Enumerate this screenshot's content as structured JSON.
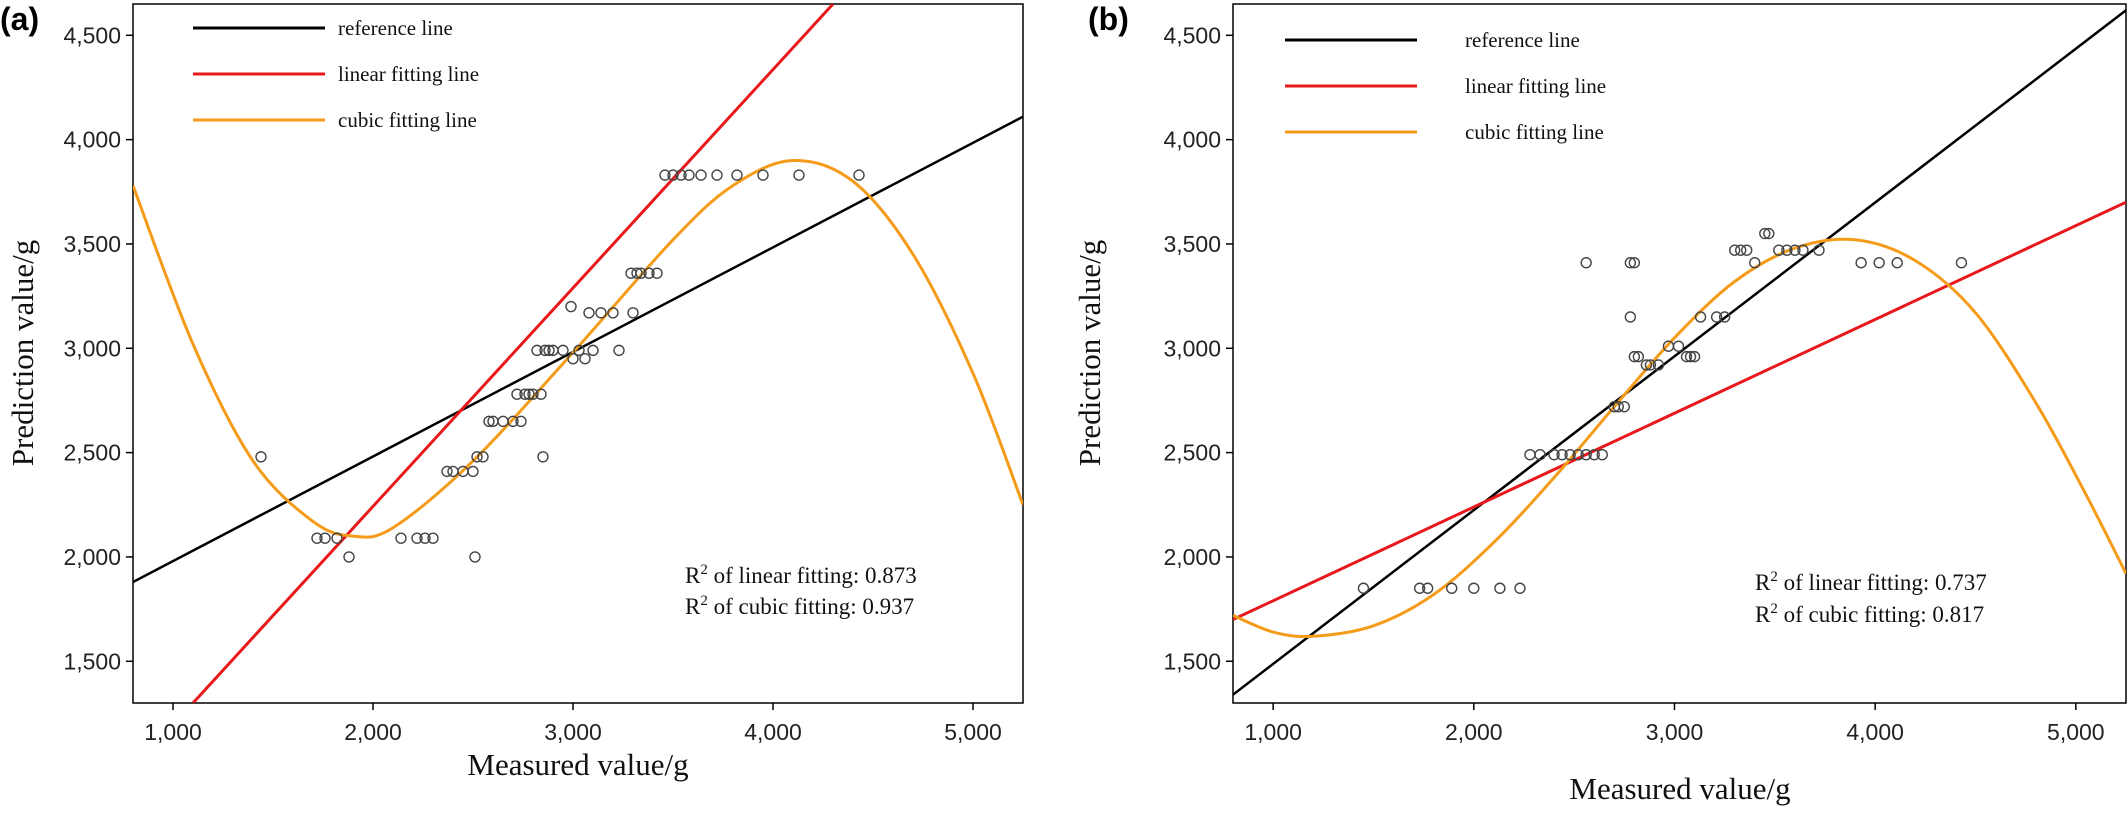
{
  "colors": {
    "reference": "#000000",
    "linear": "#e8191c",
    "cubic": "#f59b1a",
    "points": "#444444"
  },
  "chart_data": [
    {
      "panel_label": "(a)",
      "type": "scatter",
      "xlabel": "Measured value/g",
      "ylabel": "Prediction value/g",
      "xlim": [
        800,
        5250
      ],
      "ylim": [
        1300,
        4650
      ],
      "xticks": [
        1000,
        2000,
        3000,
        4000,
        5000
      ],
      "xtick_labels": [
        "1,000",
        "2,000",
        "3,000",
        "4,000",
        "5,000"
      ],
      "yticks": [
        1500,
        2000,
        2500,
        3000,
        3500,
        4000,
        4500
      ],
      "ytick_labels": [
        "1,500",
        "2,000",
        "2,500",
        "3,000",
        "3,500",
        "4,000",
        "4,500"
      ],
      "legend": {
        "position": "top-left",
        "entries": [
          {
            "label": "reference line",
            "color": "#000000"
          },
          {
            "label": "linear fitting line",
            "color": "#e8191c"
          },
          {
            "label": "cubic fitting line",
            "color": "#f59b1a"
          }
        ]
      },
      "annotations": [
        {
          "pre": "R",
          "sup": "2",
          "post": " of linear fitting: 0.873"
        },
        {
          "pre": "R",
          "sup": "2",
          "post": " of cubic fitting: 0.937"
        }
      ],
      "lines": {
        "reference": {
          "x": [
            800,
            5250
          ],
          "y": [
            1880,
            4110
          ]
        },
        "linear": {
          "x": [
            1100,
            4300
          ],
          "y": [
            1300,
            4650
          ]
        },
        "cubic_points": {
          "x": [
            800,
            1100,
            1400,
            1700,
            1900,
            2100,
            2500,
            3000,
            3500,
            3800,
            4100,
            4400,
            4700,
            5000,
            5250
          ],
          "y": [
            3780,
            3020,
            2460,
            2170,
            2100,
            2140,
            2460,
            2980,
            3520,
            3780,
            3900,
            3800,
            3450,
            2880,
            2250
          ]
        }
      },
      "points": {
        "x": [
          1440,
          1720,
          1760,
          1820,
          1880,
          2140,
          2220,
          2260,
          2300,
          2510,
          2370,
          2400,
          2450,
          2500,
          2520,
          2550,
          2580,
          2600,
          2650,
          2700,
          2740,
          2760,
          2800,
          2840,
          2850,
          2720,
          2780,
          2820,
          2860,
          2880,
          2900,
          2950,
          3000,
          3030,
          3060,
          3100,
          3230,
          2990,
          3080,
          3140,
          3200,
          3300,
          3320,
          3290,
          3340,
          3380,
          3420,
          3460,
          3500,
          3540,
          3580,
          3640,
          3720,
          3820,
          3950,
          4130,
          4430
        ],
        "y": [
          2480,
          2090,
          2090,
          2090,
          2000,
          2090,
          2090,
          2090,
          2090,
          2000,
          2410,
          2410,
          2410,
          2410,
          2480,
          2480,
          2650,
          2650,
          2650,
          2650,
          2650,
          2780,
          2780,
          2780,
          2480,
          2780,
          2780,
          2990,
          2990,
          2990,
          2990,
          2990,
          2950,
          2990,
          2950,
          2990,
          2990,
          3200,
          3170,
          3170,
          3170,
          3170,
          3360,
          3360,
          3360,
          3360,
          3360,
          3830,
          3830,
          3830,
          3830,
          3830,
          3830,
          3830,
          3830,
          3830,
          3830
        ]
      }
    },
    {
      "panel_label": "(b)",
      "type": "scatter",
      "xlabel": "Measured value/g",
      "ylabel": "Prediction value/g",
      "xlim": [
        800,
        5250
      ],
      "ylim": [
        1300,
        4650
      ],
      "xticks": [
        1000,
        2000,
        3000,
        4000,
        5000
      ],
      "xtick_labels": [
        "1,000",
        "2,000",
        "3,000",
        "4,000",
        "5,000"
      ],
      "yticks": [
        1500,
        2000,
        2500,
        3000,
        3500,
        4000,
        4500
      ],
      "ytick_labels": [
        "1,500",
        "2,000",
        "2,500",
        "3,000",
        "3,500",
        "4,000",
        "4,500"
      ],
      "legend": {
        "position": "top-left",
        "entries": [
          {
            "label": "reference line",
            "color": "#000000"
          },
          {
            "label": "linear fitting line",
            "color": "#e8191c"
          },
          {
            "label": "cubic fitting line",
            "color": "#f59b1a"
          }
        ]
      },
      "annotations": [
        {
          "pre": "R",
          "sup": "2",
          "post": " of linear fitting: 0.737"
        },
        {
          "pre": "R",
          "sup": "2",
          "post": " of cubic fitting: 0.817"
        }
      ],
      "lines": {
        "reference": {
          "x": [
            800,
            5250
          ],
          "y": [
            1340,
            4620
          ]
        },
        "linear": {
          "x": [
            800,
            5250
          ],
          "y": [
            1700,
            3700
          ]
        },
        "cubic_points": {
          "x": [
            800,
            1000,
            1200,
            1500,
            1800,
            2100,
            2400,
            2700,
            3000,
            3300,
            3600,
            3900,
            4200,
            4500,
            4800,
            5050,
            5250
          ],
          "y": [
            1720,
            1640,
            1620,
            1670,
            1820,
            2070,
            2380,
            2720,
            3050,
            3320,
            3480,
            3520,
            3420,
            3170,
            2740,
            2300,
            1920
          ]
        }
      },
      "points": {
        "x": [
          1450,
          1730,
          1770,
          1890,
          2000,
          2130,
          2230,
          2280,
          2330,
          2400,
          2440,
          2480,
          2520,
          2560,
          2600,
          2640,
          2560,
          2780,
          2800,
          2700,
          2720,
          2750,
          2780,
          2800,
          2820,
          2860,
          2880,
          2920,
          2970,
          3020,
          3060,
          3080,
          3100,
          3130,
          3210,
          3250,
          3300,
          3330,
          3360,
          3400,
          3450,
          3470,
          3520,
          3560,
          3600,
          3640,
          3720,
          3930,
          4020,
          4110,
          4430
        ],
        "y": [
          1850,
          1850,
          1850,
          1850,
          1850,
          1850,
          1850,
          2490,
          2490,
          2490,
          2490,
          2490,
          2490,
          2490,
          2490,
          2490,
          3410,
          3410,
          3410,
          2720,
          2720,
          2720,
          3150,
          2960,
          2960,
          2920,
          2920,
          2920,
          3010,
          3010,
          2960,
          2960,
          2960,
          3150,
          3150,
          3150,
          3470,
          3470,
          3470,
          3410,
          3550,
          3550,
          3470,
          3470,
          3470,
          3470,
          3470,
          3410,
          3410,
          3410,
          3410
        ]
      }
    }
  ]
}
